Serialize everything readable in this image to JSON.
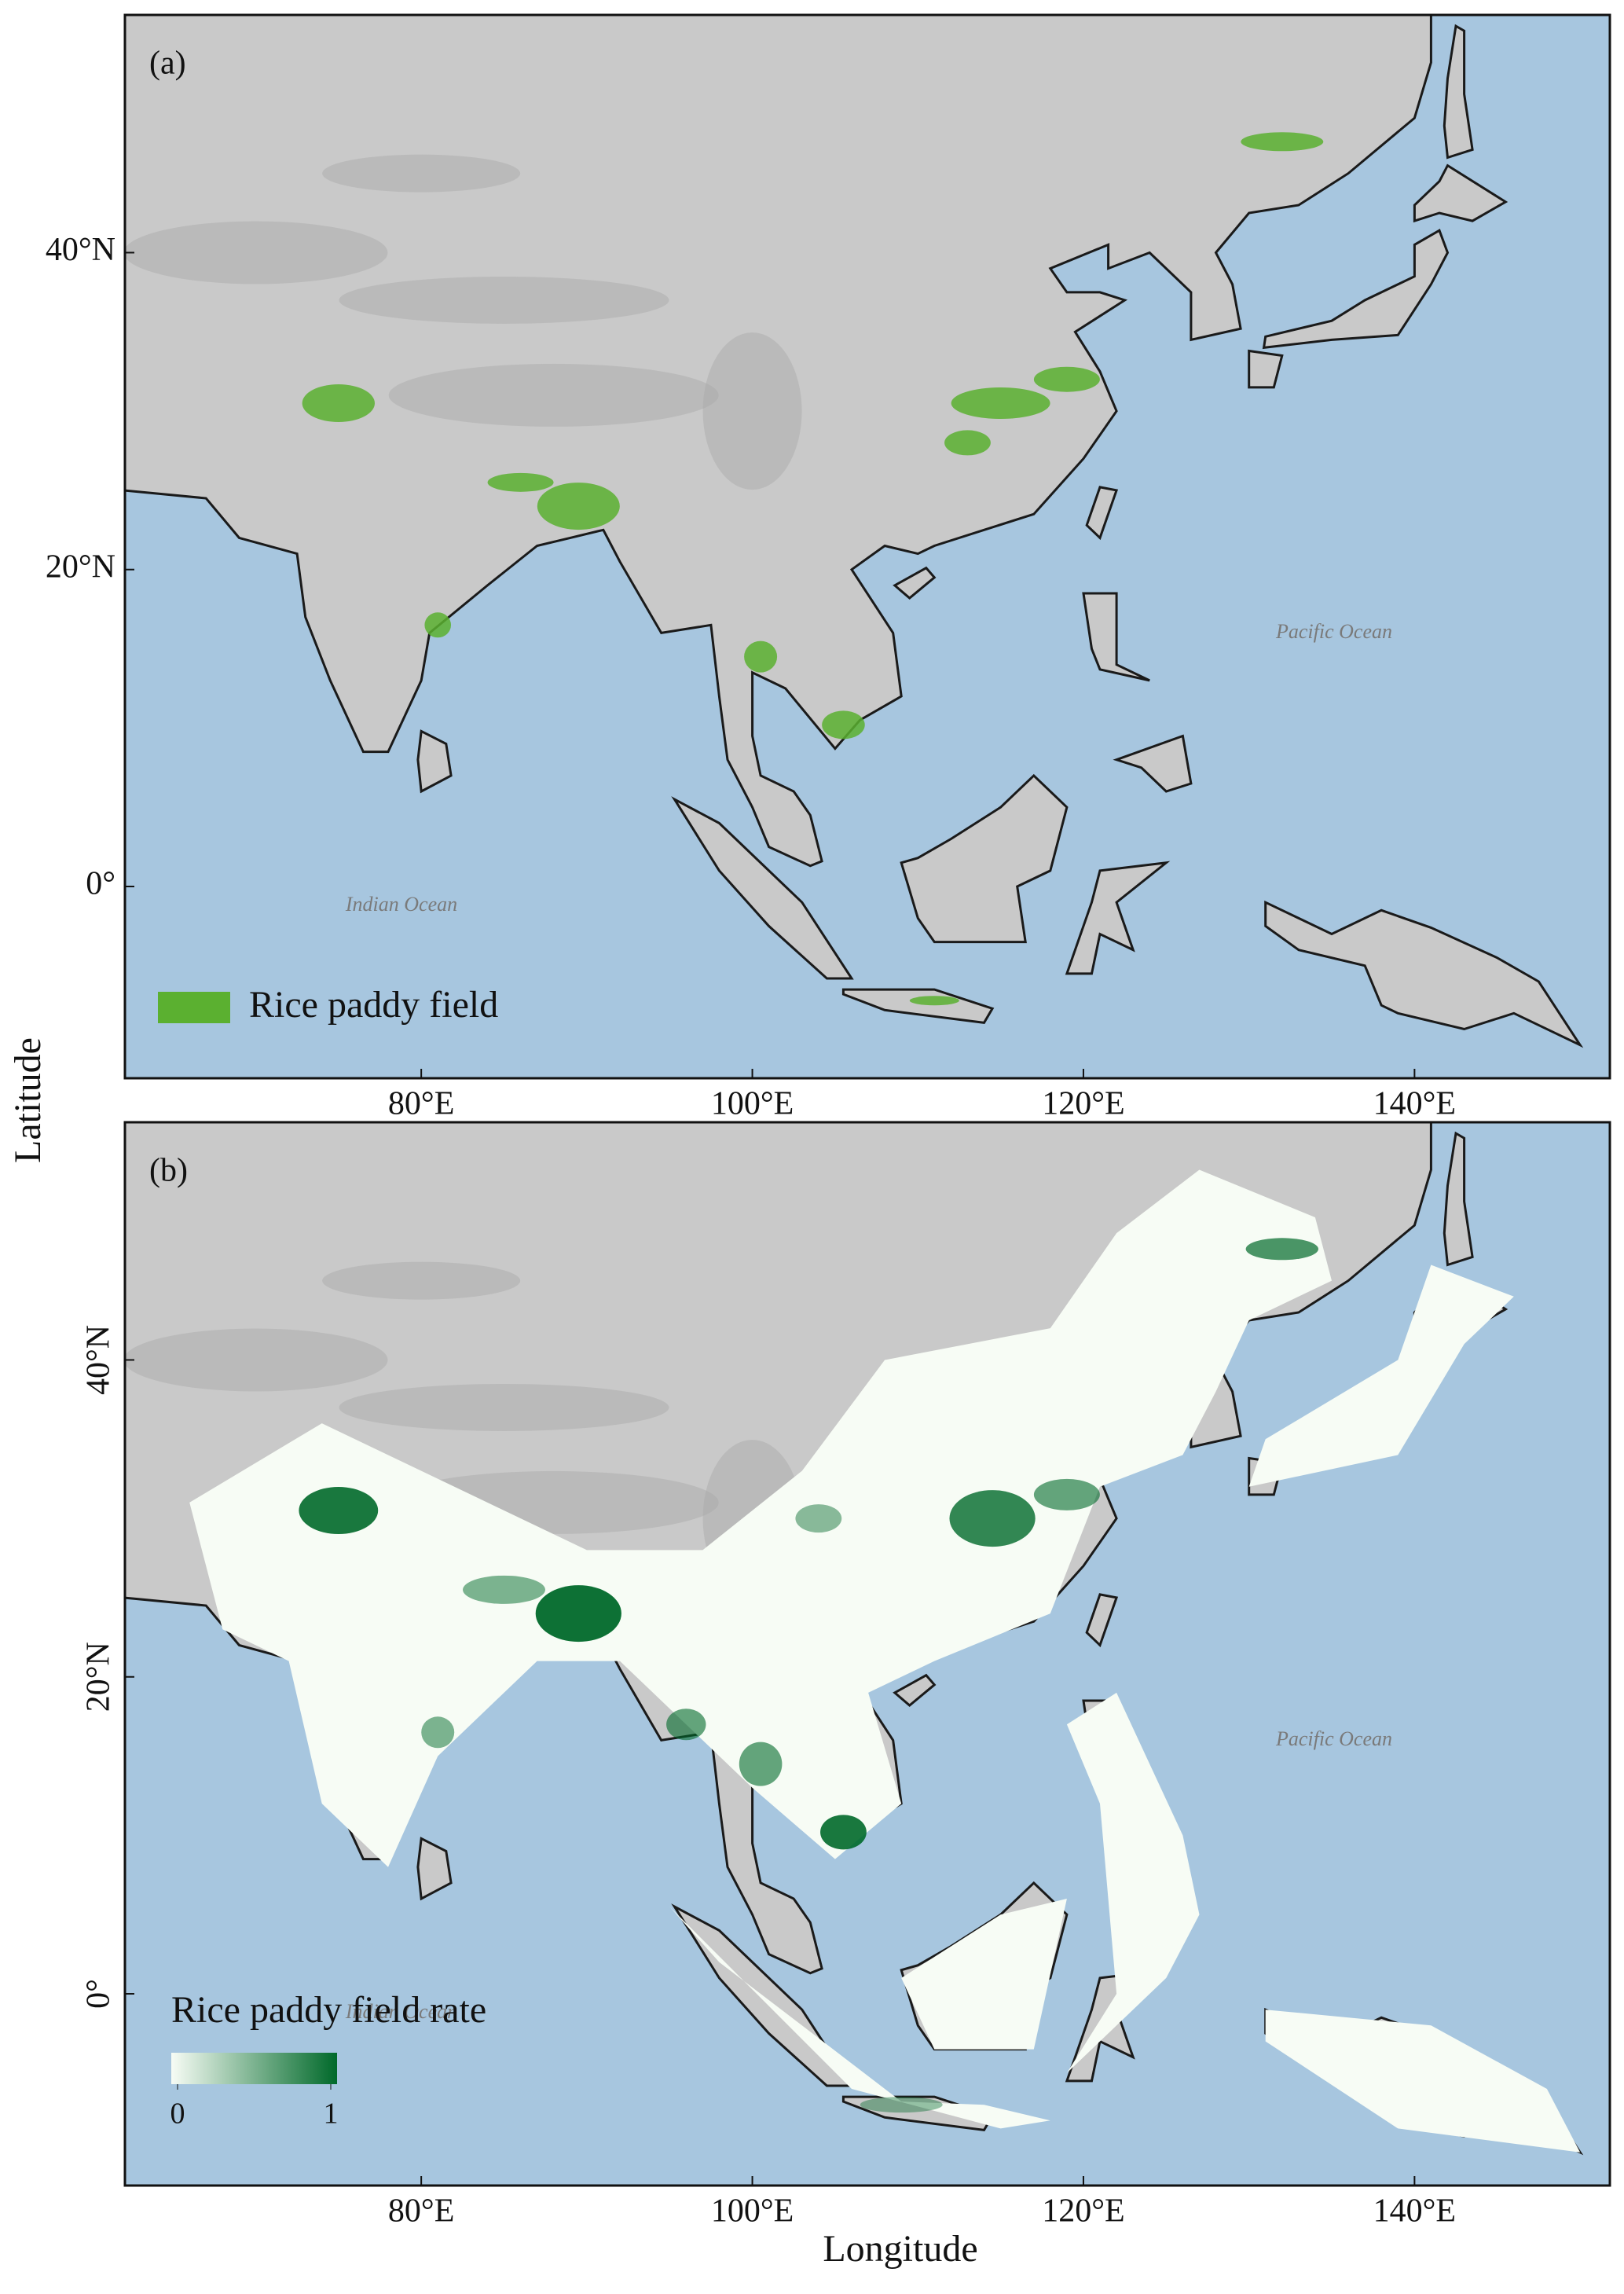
{
  "chart_data": {
    "type": "map",
    "xlabel": "Longitude",
    "ylabel": "Latitude",
    "xlim": [
      62.1,
      151.8
    ],
    "ylim": [
      -12.1,
      55
    ],
    "xticks": [
      {
        "value": 80,
        "label": "80°E"
      },
      {
        "value": 100,
        "label": "100°E"
      },
      {
        "value": 120,
        "label": "120°E"
      },
      {
        "value": 140,
        "label": "140°E"
      }
    ],
    "yticks": [
      {
        "value": 0,
        "label": "0°"
      },
      {
        "value": 20,
        "label": "20°N"
      },
      {
        "value": 40,
        "label": "40°N"
      }
    ],
    "panels": [
      {
        "label": "(a)",
        "legend": {
          "label": "Rice paddy field",
          "color": "#5bb030"
        },
        "annotations": [
          "Pacific Ocean",
          "Indian Ocean"
        ]
      },
      {
        "label": "(b)",
        "legend": {
          "label": "Rice paddy field rate",
          "colors": [
            "#f7fcf5",
            "#00692a"
          ],
          "ticks": [
            0,
            1
          ]
        },
        "annotations": [
          "Pacific Ocean",
          "Indian Ocean"
        ]
      }
    ]
  }
}
